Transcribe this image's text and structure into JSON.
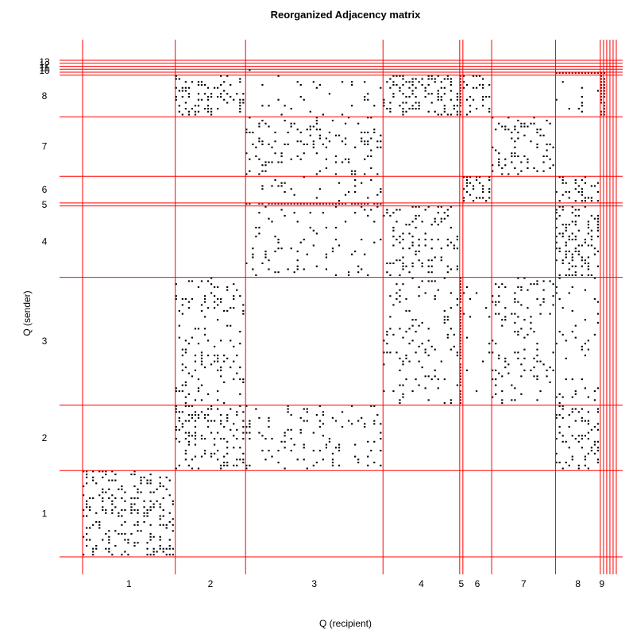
{
  "chart_data": {
    "type": "heatmap",
    "title": "Reorganized Adjacency matrix",
    "xlabel": "Q (recipient)",
    "ylabel": "Q (sender)",
    "x_tick_labels": [
      "1",
      "2",
      "3",
      "4",
      "5",
      "6",
      "7",
      "8",
      "9"
    ],
    "y_tick_labels": [
      "1",
      "2",
      "3",
      "4",
      "5",
      "6",
      "7",
      "8",
      "10",
      "11",
      "12",
      "13"
    ],
    "cluster_sizes": [
      29,
      22,
      43,
      24,
      1,
      9,
      20,
      14,
      1,
      1,
      1,
      1,
      1
    ],
    "block_density": [
      [
        0.24,
        0,
        0,
        0,
        0,
        0,
        0,
        0,
        0,
        0,
        0,
        0,
        0
      ],
      [
        0,
        0.22,
        0.1,
        0,
        0,
        0,
        0,
        0.22,
        0,
        0,
        0,
        0,
        0
      ],
      [
        0,
        0.13,
        0,
        0.1,
        0.9,
        0.05,
        0.13,
        0.06,
        0,
        0,
        0,
        0,
        0
      ],
      [
        0,
        0,
        0.08,
        0.19,
        0,
        0,
        0,
        0.3,
        0,
        0,
        0,
        0,
        0
      ],
      [
        0,
        0,
        0.9,
        0,
        0,
        0,
        0,
        0,
        0,
        0,
        0,
        0,
        0
      ],
      [
        0,
        0,
        0.05,
        0,
        0,
        0.35,
        0,
        0.3,
        0,
        0,
        0,
        0,
        0
      ],
      [
        0,
        0,
        0.15,
        0,
        0,
        0,
        0.2,
        0,
        0,
        0,
        0,
        0,
        0
      ],
      [
        0,
        0.25,
        0.04,
        0.3,
        0.9,
        0.22,
        0,
        0.05,
        0.9,
        0.9,
        0,
        0,
        0
      ],
      [
        0,
        0,
        0.05,
        0,
        0,
        0,
        0,
        0.9,
        0.9,
        0.9,
        0,
        0,
        0
      ],
      [
        0,
        0,
        0.05,
        0,
        0,
        0,
        0,
        0,
        0,
        0,
        0,
        0,
        0
      ],
      [
        0,
        0,
        0,
        0,
        0,
        0,
        0,
        0,
        0,
        0,
        0,
        0,
        0
      ],
      [
        0,
        0,
        0,
        0,
        0,
        0,
        0,
        0,
        0,
        0,
        0,
        0,
        0
      ],
      [
        0,
        0,
        0,
        0,
        0,
        0,
        0,
        0,
        0,
        0,
        0,
        0,
        0
      ]
    ],
    "cell_color": "#000000",
    "dense_cell_color": "#7a0000",
    "separator_color": "#ff0000",
    "background_color": "#ffffff",
    "grid": false
  }
}
